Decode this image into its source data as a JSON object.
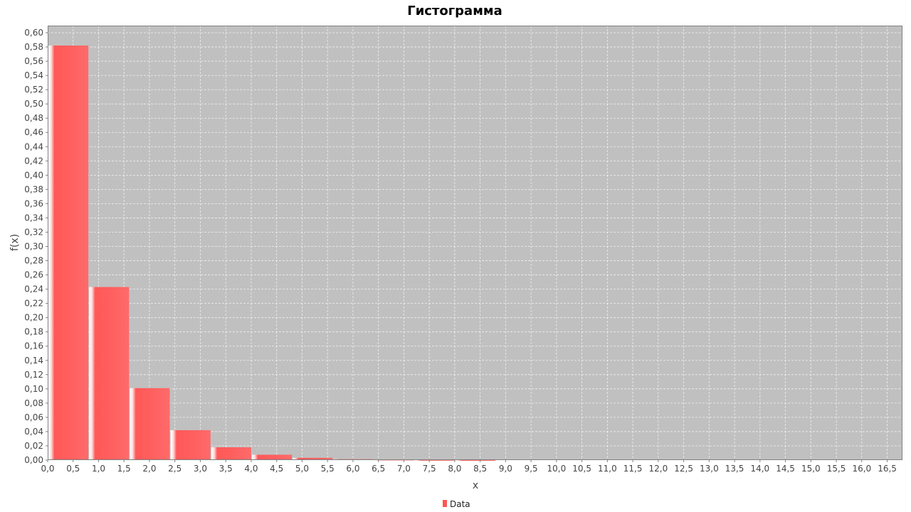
{
  "chart_data": {
    "type": "bar",
    "title": "Гистограмма",
    "xlabel": "x",
    "ylabel": "f(x)",
    "xlim": [
      0,
      16.8
    ],
    "ylim": [
      0,
      0.61
    ],
    "x_ticks": [
      "0,0",
      "0,5",
      "1,0",
      "1,5",
      "2,0",
      "2,5",
      "3,0",
      "3,5",
      "4,0",
      "4,5",
      "5,0",
      "5,5",
      "6,0",
      "6,5",
      "7,0",
      "7,5",
      "8,0",
      "8,5",
      "9,0",
      "9,5",
      "10,0",
      "10,5",
      "11,0",
      "11,5",
      "12,0",
      "12,5",
      "13,0",
      "13,5",
      "14,0",
      "14,5",
      "15,0",
      "15,5",
      "16,0",
      "16,5"
    ],
    "y_ticks": [
      "0,00",
      "0,02",
      "0,04",
      "0,06",
      "0,08",
      "0,10",
      "0,12",
      "0,14",
      "0,16",
      "0,18",
      "0,20",
      "0,22",
      "0,24",
      "0,26",
      "0,28",
      "0,30",
      "0,32",
      "0,34",
      "0,36",
      "0,38",
      "0,40",
      "0,42",
      "0,44",
      "0,46",
      "0,48",
      "0,50",
      "0,52",
      "0,54",
      "0,56",
      "0,58",
      "0,60"
    ],
    "grid": true,
    "legend": [
      "Data"
    ],
    "legend_position": "bottom",
    "colors": {
      "bar": "#ff5555",
      "plot_bg": "#c0c0c0"
    },
    "series": [
      {
        "name": "Data",
        "bins": [
          {
            "x0": 0.0,
            "x1": 0.8,
            "value": 0.582
          },
          {
            "x0": 0.8,
            "x1": 1.6,
            "value": 0.243
          },
          {
            "x0": 1.6,
            "x1": 2.4,
            "value": 0.101
          },
          {
            "x0": 2.4,
            "x1": 3.2,
            "value": 0.042
          },
          {
            "x0": 3.2,
            "x1": 4.0,
            "value": 0.018
          },
          {
            "x0": 4.0,
            "x1": 4.8,
            "value": 0.0075
          },
          {
            "x0": 4.8,
            "x1": 5.6,
            "value": 0.0032
          },
          {
            "x0": 5.6,
            "x1": 6.4,
            "value": 0.0013
          },
          {
            "x0": 6.4,
            "x1": 7.2,
            "value": 0.0006
          },
          {
            "x0": 7.2,
            "x1": 8.0,
            "value": 0.0002
          },
          {
            "x0": 8.0,
            "x1": 8.8,
            "value": 0.0001
          },
          {
            "x0": 8.8,
            "x1": 9.6,
            "value": 0.0
          },
          {
            "x0": 9.6,
            "x1": 10.4,
            "value": 0.0
          },
          {
            "x0": 10.4,
            "x1": 11.2,
            "value": 0.0
          },
          {
            "x0": 11.2,
            "x1": 12.0,
            "value": 0.0
          },
          {
            "x0": 12.0,
            "x1": 12.8,
            "value": 0.0
          },
          {
            "x0": 12.8,
            "x1": 13.6,
            "value": 0.0
          },
          {
            "x0": 13.6,
            "x1": 14.4,
            "value": 0.0
          },
          {
            "x0": 14.4,
            "x1": 15.2,
            "value": 0.0
          },
          {
            "x0": 15.2,
            "x1": 16.0,
            "value": 0.0
          },
          {
            "x0": 16.0,
            "x1": 16.8,
            "value": 0.0
          }
        ]
      }
    ]
  }
}
